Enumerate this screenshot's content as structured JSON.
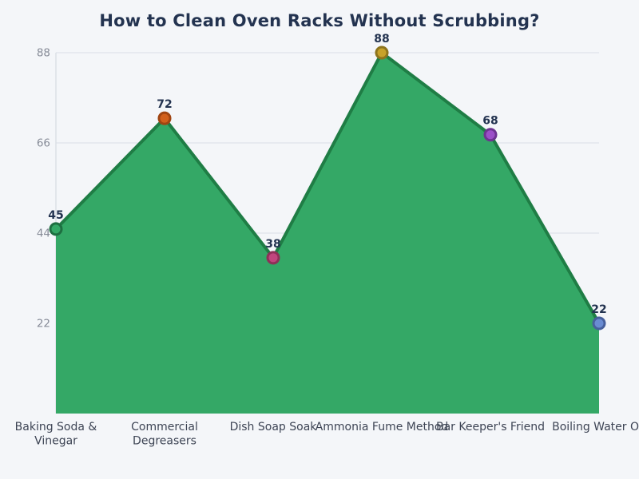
{
  "chart_data": {
    "type": "area",
    "title": "How to Clean Oven Racks Without Scrubbing?",
    "categories": [
      "Baking Soda & Vinegar",
      "Commercial Degreasers",
      "Dish Soap Soak",
      "Ammonia Fume Method",
      "Bar Keeper's Friend",
      "Boiling Water On"
    ],
    "category_label_lines": [
      [
        "Baking Soda &",
        "Vinegar"
      ],
      [
        "Commercial",
        "Degreasers"
      ],
      [
        "Dish Soap Soak"
      ],
      [
        "Ammonia Fume Method"
      ],
      [
        "Bar Keeper's Friend"
      ],
      [
        "Boiling Water On"
      ]
    ],
    "values": [
      45,
      72,
      38,
      88,
      68,
      22
    ],
    "value_labels": [
      "45",
      "72",
      "38",
      "88",
      "68",
      "22"
    ],
    "ylim": [
      0,
      88
    ],
    "yticks": [
      22,
      44,
      66,
      88
    ],
    "grid": true,
    "legend_position": "none",
    "xlabel": "",
    "ylabel": "",
    "colors": {
      "background": "#f4f6f9",
      "area_fill": "#34a866",
      "trend_line": "#1f7d45",
      "marker_fills": [
        "#34a866",
        "#d2601c",
        "#c2457e",
        "#c7a22a",
        "#9b4fc8",
        "#6a8cd2"
      ],
      "marker_edges": [
        "#1e6f41",
        "#a04512",
        "#8e3058",
        "#8d741d",
        "#6d3391",
        "#47609c"
      ],
      "title_text": "#233350",
      "value_label_text": "#233350",
      "y_tick_text": "#878c98",
      "category_text": "#3d4454",
      "gridline": "#dfe3ea",
      "y_axis_line": "#d9dde3"
    }
  }
}
